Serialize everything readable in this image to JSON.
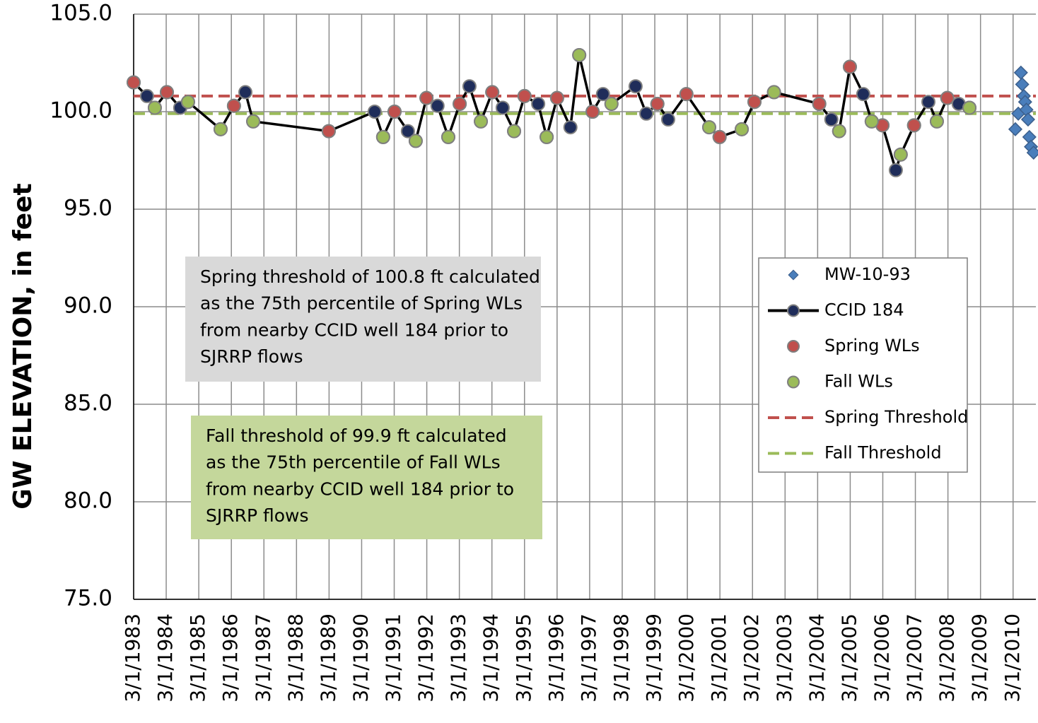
{
  "chart_data": {
    "type": "line",
    "y_label": "GW ELEVATION, in feet",
    "xlim": [
      1983.16,
      2010.86
    ],
    "ylim": [
      75,
      105
    ],
    "grid": true,
    "yticks": [
      {
        "value": 75,
        "label": "75.0"
      },
      {
        "value": 80,
        "label": "80.0"
      },
      {
        "value": 85,
        "label": "85.0"
      },
      {
        "value": 90,
        "label": "90.0"
      },
      {
        "value": 95,
        "label": "95.0"
      },
      {
        "value": 100,
        "label": "100.0"
      },
      {
        "value": 105,
        "label": "105.0"
      }
    ],
    "xticks": [
      {
        "value": 1983.16,
        "label": "3/1/1983"
      },
      {
        "value": 1984.16,
        "label": "3/1/1984"
      },
      {
        "value": 1985.16,
        "label": "3/1/1985"
      },
      {
        "value": 1986.16,
        "label": "3/1/1986"
      },
      {
        "value": 1987.16,
        "label": "3/1/1987"
      },
      {
        "value": 1988.16,
        "label": "3/1/1988"
      },
      {
        "value": 1989.16,
        "label": "3/1/1989"
      },
      {
        "value": 1990.16,
        "label": "3/1/1990"
      },
      {
        "value": 1991.16,
        "label": "3/1/1991"
      },
      {
        "value": 1992.16,
        "label": "3/1/1992"
      },
      {
        "value": 1993.16,
        "label": "3/1/1993"
      },
      {
        "value": 1994.16,
        "label": "3/1/1994"
      },
      {
        "value": 1995.16,
        "label": "3/1/1995"
      },
      {
        "value": 1996.16,
        "label": "3/1/1996"
      },
      {
        "value": 1997.16,
        "label": "3/1/1997"
      },
      {
        "value": 1998.16,
        "label": "3/1/1998"
      },
      {
        "value": 1999.16,
        "label": "3/1/1999"
      },
      {
        "value": 2000.16,
        "label": "3/1/2000"
      },
      {
        "value": 2001.16,
        "label": "3/1/2001"
      },
      {
        "value": 2002.16,
        "label": "3/1/2002"
      },
      {
        "value": 2003.16,
        "label": "3/1/2003"
      },
      {
        "value": 2004.16,
        "label": "3/1/2004"
      },
      {
        "value": 2005.16,
        "label": "3/1/2005"
      },
      {
        "value": 2006.16,
        "label": "3/1/2006"
      },
      {
        "value": 2007.16,
        "label": "3/1/2007"
      },
      {
        "value": 2008.16,
        "label": "3/1/2008"
      },
      {
        "value": 2009.16,
        "label": "3/1/2009"
      },
      {
        "value": 2010.16,
        "label": "3/1/2010"
      }
    ],
    "series": [
      {
        "name": "MW-10-93",
        "color": "#4a7ebb",
        "marker": "diamond",
        "line": false,
        "x": [
          2010.23,
          2010.32,
          2010.4,
          2010.44,
          2010.49,
          2010.53,
          2010.57,
          2010.62,
          2010.66,
          2010.71,
          2010.79
        ],
        "values": [
          99.1,
          99.9,
          102.0,
          101.4,
          100.8,
          100.5,
          100.1,
          99.6,
          98.7,
          98.2,
          97.9
        ]
      },
      {
        "name": "CCID 184",
        "color": "#1f2d5a",
        "marker": "circle",
        "line": true,
        "x": [
          1983.16,
          1983.57,
          1983.81,
          1984.18,
          1984.59,
          1984.83,
          1985.83,
          1986.24,
          1986.59,
          1986.83,
          1989.15,
          1990.56,
          1990.82,
          1991.17,
          1991.58,
          1991.82,
          1992.15,
          1992.49,
          1992.82,
          1993.17,
          1993.47,
          1993.82,
          1994.17,
          1994.49,
          1994.84,
          1995.16,
          1995.58,
          1995.84,
          1996.16,
          1996.57,
          1996.84,
          1997.25,
          1997.57,
          1997.83,
          1998.57,
          1998.9,
          1999.24,
          1999.57,
          2000.13,
          2000.83,
          2001.15,
          2001.83,
          2002.22,
          2002.82,
          2004.21,
          2004.58,
          2004.82,
          2005.15,
          2005.56,
          2005.82,
          2006.15,
          2006.56,
          2006.71,
          2007.12,
          2007.56,
          2007.82,
          2008.14,
          2008.49,
          2008.82
        ],
        "values": [
          101.5,
          100.8,
          100.2,
          101.0,
          100.2,
          100.5,
          99.1,
          100.3,
          101.0,
          99.5,
          99.0,
          100.0,
          98.7,
          100.0,
          99.0,
          98.5,
          100.7,
          100.3,
          98.7,
          100.4,
          101.3,
          99.5,
          101.0,
          100.2,
          99.0,
          100.8,
          100.4,
          98.7,
          100.7,
          99.2,
          102.9,
          100.0,
          100.9,
          100.4,
          101.3,
          99.9,
          100.4,
          99.6,
          100.9,
          99.2,
          98.7,
          99.1,
          100.5,
          101.0,
          100.4,
          99.6,
          99.0,
          102.3,
          100.9,
          99.5,
          99.3,
          97.0,
          97.8,
          99.3,
          100.5,
          99.5,
          100.7,
          100.4,
          100.2
        ]
      },
      {
        "name": "Spring WLs",
        "color": "#c0504d",
        "marker": "circle",
        "line": false,
        "x": [
          1983.16,
          1984.18,
          1986.24,
          1989.15,
          1991.17,
          1992.15,
          1993.17,
          1994.17,
          1995.16,
          1996.16,
          1997.25,
          1999.24,
          2000.13,
          2001.15,
          2002.22,
          2004.21,
          2005.15,
          2006.15,
          2007.12,
          2008.14
        ],
        "values": [
          101.5,
          101.0,
          100.3,
          99.0,
          100.0,
          100.7,
          100.4,
          101.0,
          100.8,
          100.7,
          100.0,
          100.4,
          100.9,
          98.7,
          100.5,
          100.4,
          102.3,
          99.3,
          99.3,
          100.7
        ]
      },
      {
        "name": "Fall WLs",
        "color": "#9bbb59",
        "marker": "circle",
        "line": false,
        "x": [
          1983.81,
          1984.83,
          1985.83,
          1986.83,
          1990.82,
          1991.82,
          1992.82,
          1993.82,
          1994.84,
          1995.84,
          1996.84,
          1997.83,
          2000.83,
          2001.83,
          2002.82,
          2004.82,
          2005.82,
          2006.71,
          2007.82,
          2008.82
        ],
        "values": [
          100.2,
          100.5,
          99.1,
          99.5,
          98.7,
          98.5,
          98.7,
          99.5,
          99.0,
          98.7,
          102.9,
          100.4,
          99.2,
          99.1,
          101.0,
          99.0,
          99.5,
          97.8,
          99.5,
          100.2
        ]
      }
    ],
    "thresholds": [
      {
        "name": "Spring Threshold",
        "value": 100.8,
        "color": "#c0504d"
      },
      {
        "name": "Fall Threshold",
        "value": 99.9,
        "color": "#9bbb59"
      }
    ],
    "annotations": [
      {
        "background": "#d9d9d9",
        "lines": [
          "Spring threshold of 100.8 ft calculated",
          "as the 75th percentile of Spring WLs",
          "from nearby CCID well 184 prior to",
          "SJRRP flows"
        ]
      },
      {
        "background": "#c4d79b",
        "lines": [
          "Fall threshold of 99.9 ft calculated",
          "as the 75th percentile of Fall WLs",
          "from nearby CCID well 184 prior to",
          "SJRRP flows"
        ]
      }
    ]
  }
}
